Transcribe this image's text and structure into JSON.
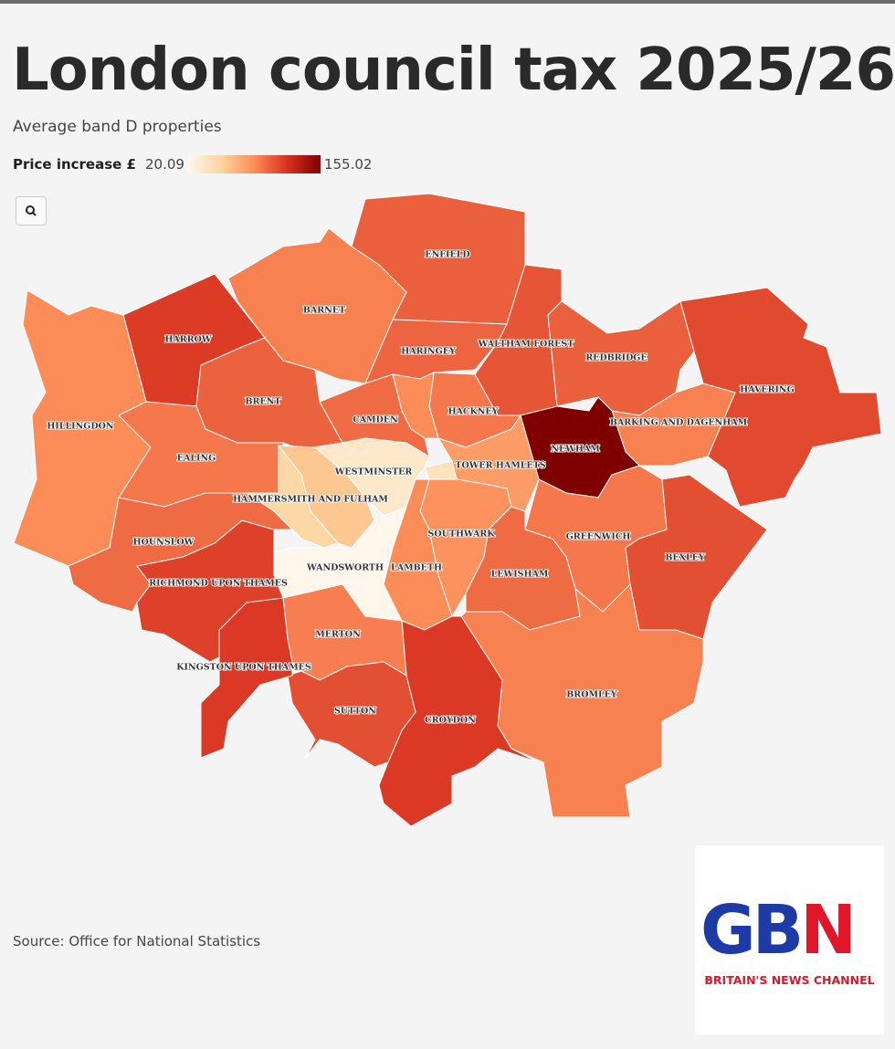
{
  "title": "London council tax 2025/26",
  "subtitle": "Average band D properties",
  "legend": {
    "label": "Price increase £",
    "min": 20.09,
    "max": 155.02,
    "colors": [
      "#fff7ec",
      "#fdd49e",
      "#fc8d59",
      "#d7301f",
      "#7f0000"
    ]
  },
  "regions": [
    {
      "name": "ENFIELD",
      "value": 104
    },
    {
      "name": "BARNET",
      "value": 92
    },
    {
      "name": "HARROW",
      "value": 117
    },
    {
      "name": "HILLINGDON",
      "value": 88
    },
    {
      "name": "BRENT",
      "value": 103
    },
    {
      "name": "EALING",
      "value": 95
    },
    {
      "name": "HARINGEY",
      "value": 102
    },
    {
      "name": "WALTHAM FOREST",
      "value": 108
    },
    {
      "name": "REDBRIDGE",
      "value": 104
    },
    {
      "name": "HAVERING",
      "value": 112
    },
    {
      "name": "BARKING AND DAGENHAM",
      "value": 92
    },
    {
      "name": "NEWHAM",
      "value": 155.02
    },
    {
      "name": "HACKNEY",
      "value": 95
    },
    {
      "name": null,
      "value": 88
    },
    {
      "name": "CAMDEN",
      "value": 100
    },
    {
      "name": null,
      "value": 40
    },
    {
      "name": "TOWER HAMLETS",
      "value": 80
    },
    {
      "name": "WESTMINSTER",
      "value": 35
    },
    {
      "name": null,
      "value": 60
    },
    {
      "name": "HAMMERSMITH AND FULHAM",
      "value": 50
    },
    {
      "name": "SOUTHWARK",
      "value": 85
    },
    {
      "name": "LAMBETH",
      "value": 88
    },
    {
      "name": "WANDSWORTH",
      "value": 20.09
    },
    {
      "name": "GREENWICH",
      "value": 95
    },
    {
      "name": "LEWISHAM",
      "value": 100
    },
    {
      "name": "BEXLEY",
      "value": 110
    },
    {
      "name": "BROMLEY",
      "value": 92
    },
    {
      "name": "CROYDON",
      "value": 118
    },
    {
      "name": "MERTON",
      "value": 93
    },
    {
      "name": "SUTTON",
      "value": 110
    },
    {
      "name": "KINGSTON UPON THAMES",
      "value": 118
    },
    {
      "name": "RICHMOND UPON THAMES",
      "value": 115
    },
    {
      "name": "HOUNSLOW",
      "value": 100
    }
  ],
  "source": "Source: Office for National Statistics",
  "logo": {
    "letters": [
      "GB",
      "N"
    ],
    "tagline": "BRITAIN'S NEWS CHANNEL"
  }
}
